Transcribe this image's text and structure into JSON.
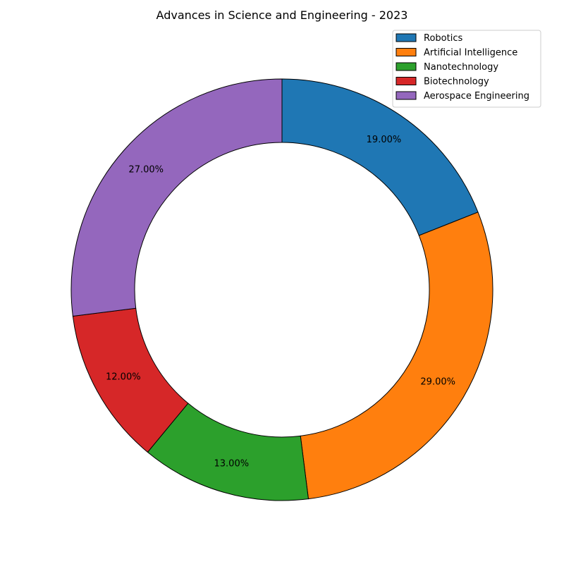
{
  "chart_data": {
    "type": "pie",
    "variant": "donut",
    "title": "Advances in Science and Engineering - 2023",
    "categories": [
      "Robotics",
      "Artificial Intelligence",
      "Nanotechnology",
      "Biotechnology",
      "Aerospace Engineering"
    ],
    "values": [
      19,
      29,
      13,
      12,
      27
    ],
    "labels": [
      "19.00%",
      "29.00%",
      "13.00%",
      "12.00%",
      "27.00%"
    ],
    "colors": [
      "#1f77b4",
      "#ff7f0e",
      "#2ca02c",
      "#d62728",
      "#9467bd"
    ],
    "start": "top",
    "direction": "clockwise",
    "legend_position": "top-right"
  }
}
